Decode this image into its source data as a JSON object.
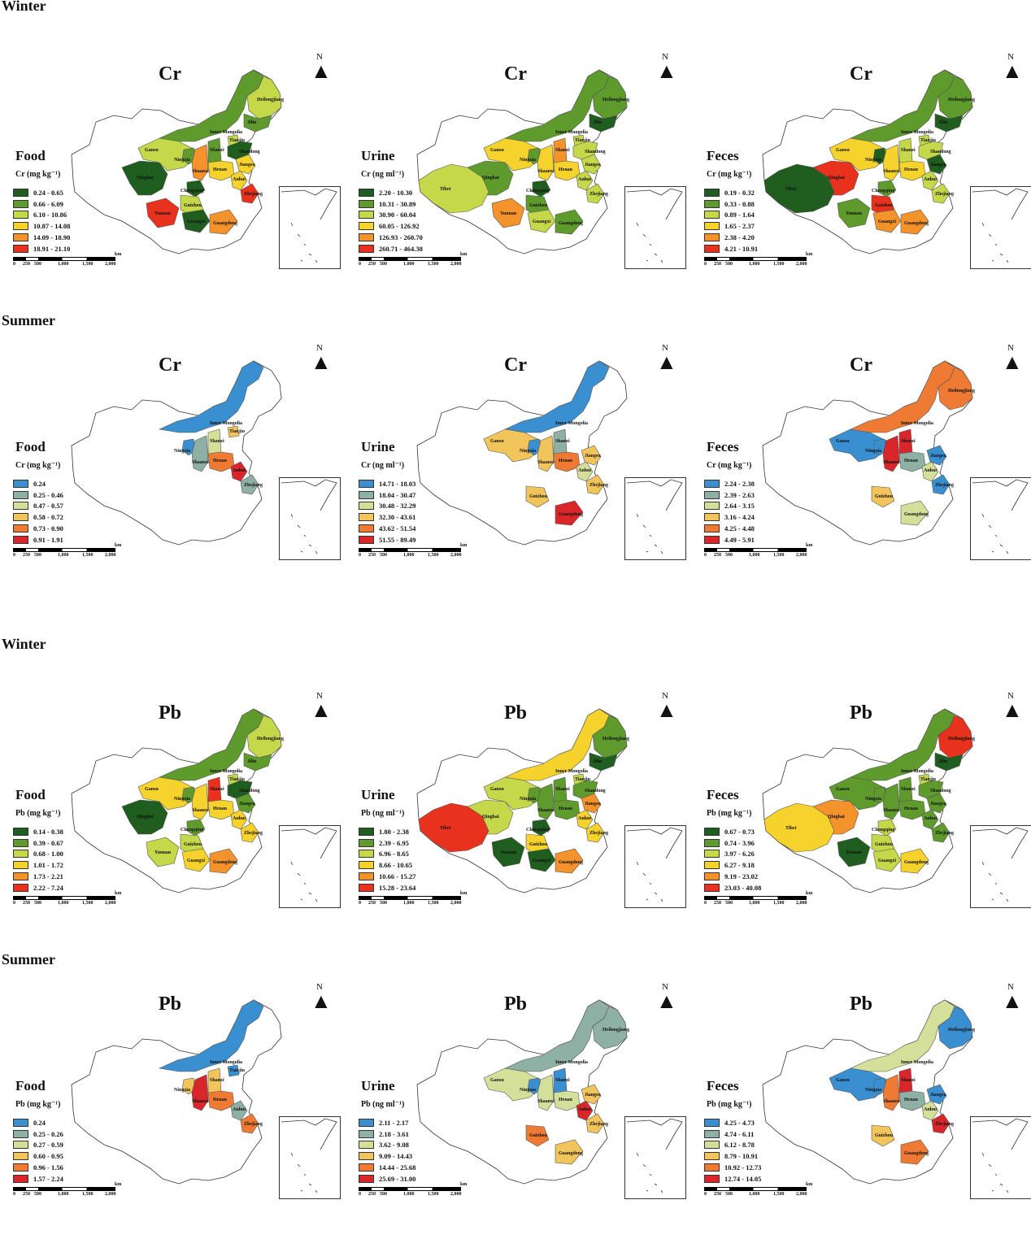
{
  "seasons": {
    "winter_cr": "Winter",
    "summer_cr": "Summer",
    "winter_pb": "Winter",
    "summer_pb": "Summer"
  },
  "north_label": "N",
  "scale": {
    "ticks": [
      "0",
      "250",
      "500",
      "1,000",
      "1,500",
      "2,000"
    ],
    "unit": "km"
  },
  "province_names": {
    "Heilongjiang": "Heilongjiang",
    "InnerMongolia": "Inner Mongolia",
    "Gansu": "Gansu",
    "Qinghai": "Qinghai",
    "Tibet": "Tibet",
    "Ningxia": "Ningxia",
    "Shanxi": "Shanxi",
    "Shaanxi": "Shaanxi",
    "Henan": "Henan",
    "Tianjin": "Tianjin",
    "Shandong": "Shandong",
    "Anhui": "Anhui",
    "Jiangsu": "Jiangsu",
    "Zhejiang": "Zhejiang",
    "Chongqing": "Chongqing",
    "Guizhou": "Guizhou",
    "Yunnan": "Yunnan",
    "Guangxi": "Guangxi",
    "Guangdong": "Guangdong",
    "Jilin": "Jilin"
  },
  "palettes": {
    "green_red": [
      "#1f5e1f",
      "#5e9a2c",
      "#c4d84a",
      "#f5d22c",
      "#f4922c",
      "#e8321e"
    ],
    "blue_red": [
      "#3a8fd0",
      "#8fb0a4",
      "#d4e09a",
      "#f2c55c",
      "#ee7a34",
      "#d8262a"
    ]
  },
  "panels": [
    {
      "element": "Cr",
      "category": "Food",
      "unit": "Cr (mg kg⁻¹)",
      "palette": "green_red",
      "legend": [
        "0.24 - 0.65",
        "0.66 - 6.09",
        "6.10 - 10.86",
        "10.87 - 14.08",
        "14.09 - 18.90",
        "18.91 - 21.10"
      ],
      "provinces": {
        "Heilongjiang": 2,
        "InnerMongolia": 1,
        "Gansu": 2,
        "Qinghai": 0,
        "Ningxia": 1,
        "Shaanxi": 4,
        "Shanxi": 1,
        "Henan": 3,
        "Tianjin": 2,
        "Shandong": 0,
        "Anhui": 3,
        "Jiangsu": 3,
        "Zhejiang": 5,
        "Chongqing": 0,
        "Guizhou": 2,
        "Yunnan": 5,
        "Guangxi": 0,
        "Guangdong": 4,
        "Jilin": 1
      }
    },
    {
      "element": "Cr",
      "category": "Urine",
      "unit": "Cr (ng ml⁻¹)",
      "palette": "green_red",
      "legend": [
        "2.20 - 10.30",
        "10.31 - 30.89",
        "30.90 - 60.04",
        "60.05 - 126.92",
        "126.93 - 260.70",
        "260.71 - 464.38"
      ],
      "provinces": {
        "Heilongjiang": 1,
        "InnerMongolia": 1,
        "Gansu": 3,
        "Qinghai": 1,
        "Tibet": 2,
        "Ningxia": 1,
        "Shaanxi": 3,
        "Shanxi": 4,
        "Henan": 3,
        "Tianjin": 2,
        "Shandong": 2,
        "Anhui": 2,
        "Jiangsu": 2,
        "Zhejiang": 2,
        "Chongqing": 0,
        "Guizhou": 1,
        "Yunnan": 4,
        "Guangxi": 2,
        "Guangdong": 1,
        "Jilin": 0
      }
    },
    {
      "element": "Cr",
      "category": "Feces",
      "unit": "Cr (mg kg⁻¹)",
      "palette": "green_red",
      "legend": [
        "0.19 - 0.32",
        "0.33 - 0.88",
        "0.89 - 1.64",
        "1.65 - 2.37",
        "2.38 - 4.20",
        "4.21 - 10.91"
      ],
      "provinces": {
        "Heilongjiang": 1,
        "InnerMongolia": 1,
        "Gansu": 3,
        "Qinghai": 5,
        "Tibet": 0,
        "Ningxia": 0,
        "Shaanxi": 3,
        "Shanxi": 2,
        "Henan": 3,
        "Tianjin": 2,
        "Shandong": 2,
        "Anhui": 2,
        "Jiangsu": 0,
        "Zhejiang": 2,
        "Chongqing": 1,
        "Guizhou": 5,
        "Yunnan": 1,
        "Guangxi": 4,
        "Guangdong": 4,
        "Jilin": 0
      }
    },
    {
      "element": "Cr",
      "category": "Food",
      "unit": "Cr (mg kg⁻¹)",
      "palette": "blue_red",
      "legend": [
        "0.24",
        "0.25 - 0.46",
        "0.47 - 0.57",
        "0.58 - 0.72",
        "0.73 - 0.90",
        "0.91 - 1.91"
      ],
      "provinces": {
        "InnerMongolia": 0,
        "Ningxia": 0,
        "Shaanxi": 1,
        "Shanxi": 2,
        "Henan": 4,
        "Tianjin": 3,
        "Anhui": 5,
        "Zhejiang": 1
      }
    },
    {
      "element": "Cr",
      "category": "Urine",
      "unit": "Cr (ng ml⁻¹)",
      "palette": "blue_red",
      "legend": [
        "14.71 - 18.03",
        "18.04 - 30.47",
        "30.48 - 32.29",
        "32.30 - 43.61",
        "43.62 - 51.54",
        "51.55 - 89.49"
      ],
      "provinces": {
        "InnerMongolia": 0,
        "Gansu": 3,
        "Ningxia": 0,
        "Shaanxi": 3,
        "Shanxi": 1,
        "Henan": 4,
        "Anhui": 2,
        "Jiangsu": 3,
        "Zhejiang": 3,
        "Guizhou": 3,
        "Guangdong": 5
      }
    },
    {
      "element": "Cr",
      "category": "Feces",
      "unit": "Cr (mg kg⁻¹)",
      "palette": "blue_red",
      "legend": [
        "2.24 - 2.38",
        "2.39 - 2.63",
        "2.64 - 3.15",
        "3.16 - 4.24",
        "4.25 - 4.48",
        "4.49 - 5.91"
      ],
      "provinces": {
        "Heilongjiang": 4,
        "InnerMongolia": 4,
        "Gansu": 0,
        "Ningxia": 0,
        "Shaanxi": 5,
        "Shanxi": 5,
        "Henan": 1,
        "Anhui": 2,
        "Jiangsu": 0,
        "Zhejiang": 0,
        "Guizhou": 3,
        "Guangdong": 2
      }
    },
    {
      "element": "Pb",
      "category": "Food",
      "unit": "Pb (mg kg⁻¹)",
      "palette": "green_red",
      "legend": [
        "0.14 - 0.38",
        "0.39 - 0.67",
        "0.68 - 1.00",
        "1.01 - 1.72",
        "1.73 - 2.21",
        "2.22 - 7.24"
      ],
      "provinces": {
        "Heilongjiang": 2,
        "InnerMongolia": 1,
        "Gansu": 3,
        "Qinghai": 0,
        "Ningxia": 1,
        "Shaanxi": 3,
        "Shanxi": 5,
        "Henan": 3,
        "Tianjin": 2,
        "Shandong": 0,
        "Anhui": 3,
        "Jiangsu": 1,
        "Zhejiang": 3,
        "Chongqing": 1,
        "Guizhou": 2,
        "Yunnan": 2,
        "Guangxi": 3,
        "Guangdong": 4,
        "Jilin": 1
      }
    },
    {
      "element": "Pb",
      "category": "Urine",
      "unit": "Pb (ng ml⁻¹)",
      "palette": "green_red",
      "legend": [
        "1.80 - 2.38",
        "2.39 - 6.95",
        "6.96 - 8.65",
        "8.66 - 10.65",
        "10.66 - 15.27",
        "15.28 - 23.64"
      ],
      "provinces": {
        "Heilongjiang": 1,
        "InnerMongolia": 3,
        "Gansu": 2,
        "Qinghai": 2,
        "Tibet": 5,
        "Ningxia": 1,
        "Shaanxi": 1,
        "Shanxi": 1,
        "Henan": 1,
        "Tianjin": 2,
        "Shandong": 1,
        "Anhui": 3,
        "Jiangsu": 4,
        "Zhejiang": 3,
        "Chongqing": 0,
        "Guizhou": 3,
        "Yunnan": 0,
        "Guangxi": 0,
        "Guangdong": 4,
        "Jilin": 0
      }
    },
    {
      "element": "Pb",
      "category": "Feces",
      "unit": "Pb (mg kg⁻¹)",
      "palette": "green_red",
      "legend": [
        "0.67 - 0.73",
        "0.74 - 3.96",
        "3.97 - 6.26",
        "6.27 - 9.18",
        "9.19 - 23.02",
        "23.03 - 40.08"
      ],
      "provinces": {
        "Heilongjiang": 5,
        "InnerMongolia": 1,
        "Gansu": 1,
        "Qinghai": 4,
        "Tibet": 3,
        "Ningxia": 1,
        "Shaanxi": 1,
        "Shanxi": 1,
        "Henan": 1,
        "Tianjin": 2,
        "Shandong": 1,
        "Anhui": 1,
        "Jiangsu": 1,
        "Zhejiang": 1,
        "Chongqing": 2,
        "Guizhou": 2,
        "Yunnan": 0,
        "Guangxi": 2,
        "Guangdong": 3,
        "Jilin": 0
      }
    },
    {
      "element": "Pb",
      "category": "Food",
      "unit": "Pb (mg kg⁻¹)",
      "palette": "blue_red",
      "legend": [
        "0.24",
        "0.25 - 0.26",
        "0.27 - 0.59",
        "0.60 - 0.95",
        "0.96 - 1.56",
        "1.57 - 2.24"
      ],
      "provinces": {
        "InnerMongolia": 0,
        "Ningxia": 3,
        "Shaanxi": 5,
        "Shanxi": 3,
        "Henan": 4,
        "Tianjin": 0,
        "Anhui": 1,
        "Zhejiang": 4
      }
    },
    {
      "element": "Pb",
      "category": "Urine",
      "unit": "Pb (ng ml⁻¹)",
      "palette": "blue_red",
      "legend": [
        "2.11 - 2.17",
        "2.18 - 3.61",
        "3.62 - 9.08",
        "9.09 - 14.43",
        "14.44 - 25.68",
        "25.69 - 31.00"
      ],
      "provinces": {
        "Heilongjiang": 1,
        "InnerMongolia": 1,
        "Gansu": 2,
        "Ningxia": 0,
        "Shaanxi": 2,
        "Shanxi": 0,
        "Henan": 2,
        "Anhui": 5,
        "Jiangsu": 3,
        "Zhejiang": 3,
        "Guizhou": 4,
        "Guangdong": 3
      }
    },
    {
      "element": "Pb",
      "category": "Feces",
      "unit": "Pb (mg kg⁻¹)",
      "palette": "blue_red",
      "legend": [
        "4.25 - 4.73",
        "4.74 - 6.11",
        "6.12 - 8.78",
        "8.79 - 10.91",
        "10.92 - 12.73",
        "12.74 - 14.05"
      ],
      "provinces": {
        "Heilongjiang": 0,
        "InnerMongolia": 2,
        "Gansu": 0,
        "Ningxia": 0,
        "Shaanxi": 4,
        "Shanxi": 5,
        "Henan": 1,
        "Anhui": 2,
        "Jiangsu": 0,
        "Zhejiang": 5,
        "Guizhou": 3,
        "Guangdong": 4
      }
    }
  ]
}
